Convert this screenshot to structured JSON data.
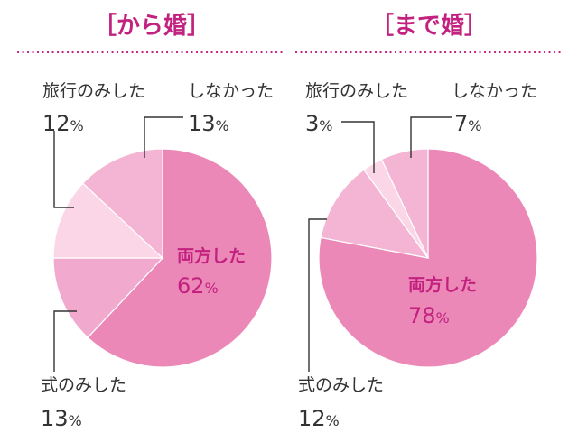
{
  "chart_data": [
    {
      "type": "pie",
      "title": "［から婚］",
      "slices": [
        {
          "label": "両方した",
          "value": 62,
          "color": "#ec88b7"
        },
        {
          "label": "式のみした",
          "value": 13,
          "color": "#f1aace"
        },
        {
          "label": "旅行のみした",
          "value": 12,
          "color": "#fad6e7"
        },
        {
          "label": "しなかった",
          "value": 13,
          "color": "#f3b5d3"
        }
      ]
    },
    {
      "type": "pie",
      "title": "［まで婚］",
      "slices": [
        {
          "label": "両方した",
          "value": 78,
          "color": "#ec88b7"
        },
        {
          "label": "式のみした",
          "value": 12,
          "color": "#f3b5d3"
        },
        {
          "label": "旅行のみした",
          "value": 3,
          "color": "#fad6e7"
        },
        {
          "label": "しなかった",
          "value": 7,
          "color": "#f3b5d3"
        }
      ]
    }
  ],
  "unit": "%",
  "colors": {
    "accent": "#c2217f",
    "text": "#333333",
    "divider": "#c2217f"
  }
}
